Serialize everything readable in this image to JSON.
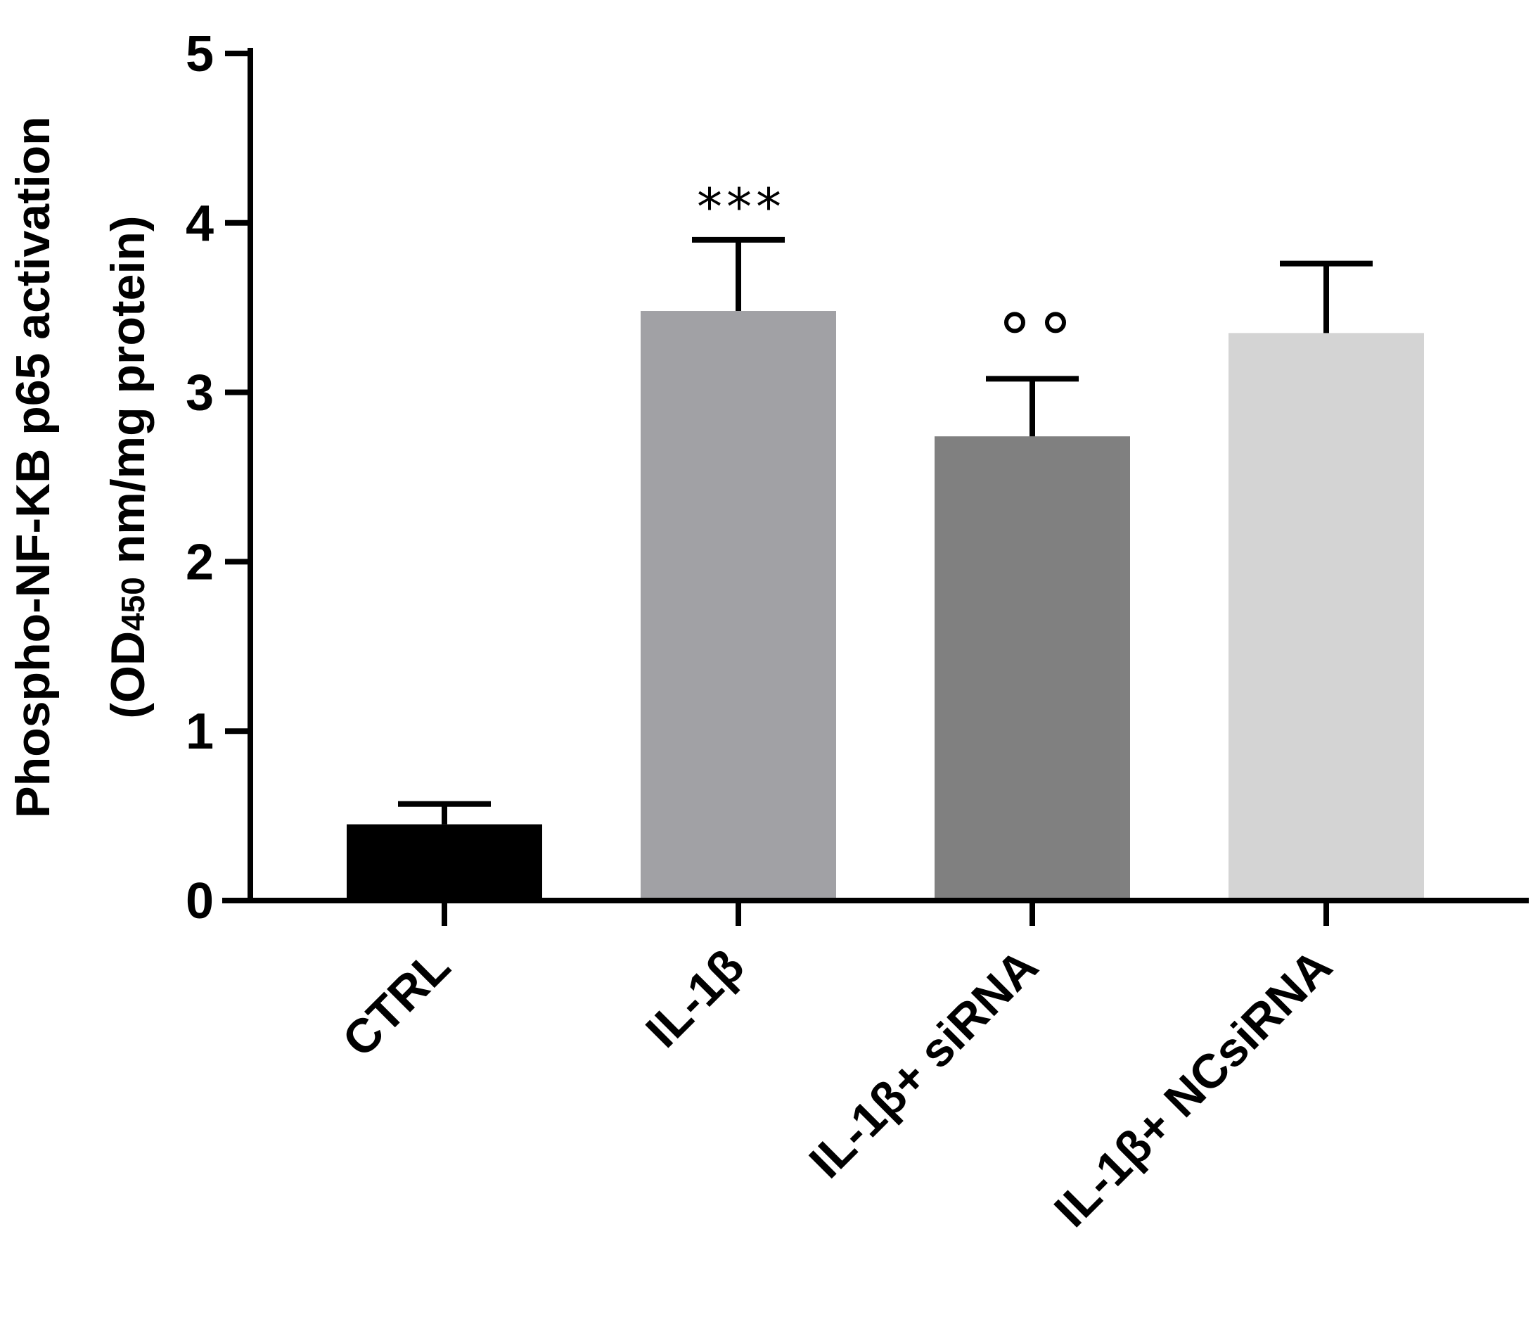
{
  "chart_data": {
    "type": "bar",
    "title": "",
    "xlabel": "",
    "ylabel": "Phospho-NF-KB p65 activation",
    "ylabel_line2": {
      "prefix": "(OD",
      "subscript": "450",
      "suffix": " nm/mg protein)"
    },
    "ylim": [
      0,
      5
    ],
    "yticks": [
      "0",
      "1",
      "2",
      "3",
      "4",
      "5"
    ],
    "categories": [
      "CTRL",
      "IL-1β",
      "IL-1β+ siRNA",
      "IL-1β+ NCsiRNA"
    ],
    "values": [
      0.45,
      3.48,
      2.74,
      3.35
    ],
    "errors": [
      0.12,
      0.42,
      0.34,
      0.41
    ],
    "colors": [
      "#000000",
      "#a1a1a5",
      "#808080",
      "#d4d4d4"
    ],
    "annotations": [
      {
        "category": "IL-1β",
        "text": "***",
        "kind": "asterisks"
      },
      {
        "category": "IL-1β+ siRNA",
        "text": "°°",
        "kind": "circles",
        "count": 2
      }
    ],
    "grid": false,
    "legend": "none"
  }
}
